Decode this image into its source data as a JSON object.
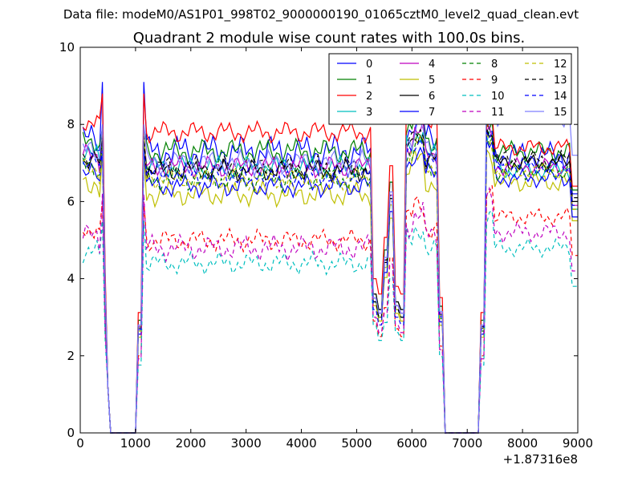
{
  "figure": {
    "suptitle": "Data file: modeM0/AS1P01_998T02_9000000190_01065cztM0_level2_quad_clean.evt"
  },
  "chart_data": {
    "type": "line",
    "title": "Quadrant 2 module wise count rates with 100.0s bins.",
    "xlabel": "",
    "ylabel": "",
    "x_offset_label": "+1.87316e8",
    "xlim": [
      0,
      9000
    ],
    "ylim": [
      0,
      10
    ],
    "xticks": [
      0,
      1000,
      2000,
      3000,
      4000,
      5000,
      6000,
      7000,
      8000,
      9000
    ],
    "yticks": [
      0,
      2,
      4,
      6,
      8,
      10
    ],
    "grid": false,
    "legend_position": "top-right",
    "series": [
      {
        "name": "0",
        "color": "#0000ff",
        "dash": "solid",
        "level": 7.3,
        "peak": 9.1,
        "drop": 3.1,
        "amp": 0.45,
        "late": 7.2
      },
      {
        "name": "1",
        "color": "#008000",
        "dash": "solid",
        "level": 7.3,
        "peak": 7.9,
        "drop": 3.2,
        "amp": 0.35,
        "late": 7.3
      },
      {
        "name": "2",
        "color": "#ff0000",
        "dash": "solid",
        "level": 7.8,
        "peak": 8.8,
        "drop": 3.6,
        "amp": 0.3,
        "late": 7.4
      },
      {
        "name": "3",
        "color": "#00bfbf",
        "dash": "solid",
        "level": 6.9,
        "peak": 7.6,
        "drop": 3.0,
        "amp": 0.3,
        "late": 6.8
      },
      {
        "name": "4",
        "color": "#bf00bf",
        "dash": "solid",
        "level": 6.9,
        "peak": 7.7,
        "drop": 3.1,
        "amp": 0.3,
        "late": 6.9
      },
      {
        "name": "5",
        "color": "#bfbf00",
        "dash": "solid",
        "level": 6.2,
        "peak": 7.3,
        "drop": 2.9,
        "amp": 0.35,
        "late": 6.5
      },
      {
        "name": "6",
        "color": "#000000",
        "dash": "solid",
        "level": 6.8,
        "peak": 7.8,
        "drop": 3.2,
        "amp": 0.3,
        "late": 7.0
      },
      {
        "name": "7",
        "color": "#0000ff",
        "dash": "solid",
        "level": 6.4,
        "peak": 7.4,
        "drop": 3.0,
        "amp": 0.3,
        "late": 6.6
      },
      {
        "name": "8",
        "color": "#008000",
        "dash": "dashed",
        "level": 6.6,
        "peak": 7.5,
        "drop": 3.0,
        "amp": 0.35,
        "late": 6.8
      },
      {
        "name": "9",
        "color": "#ff0000",
        "dash": "dashed",
        "level": 5.0,
        "peak": 6.0,
        "drop": 2.5,
        "amp": 0.3,
        "late": 5.6
      },
      {
        "name": "10",
        "color": "#00bfbf",
        "dash": "dashed",
        "level": 4.4,
        "peak": 5.5,
        "drop": 2.4,
        "amp": 0.3,
        "late": 4.8
      },
      {
        "name": "11",
        "color": "#bf00bf",
        "dash": "dashed",
        "level": 4.8,
        "peak": 6.2,
        "drop": 2.6,
        "amp": 0.35,
        "late": 5.2
      },
      {
        "name": "12",
        "color": "#bfbf00",
        "dash": "dashed",
        "level": 6.6,
        "peak": 7.9,
        "drop": 3.0,
        "amp": 0.3,
        "late": 6.8
      },
      {
        "name": "13",
        "color": "#000000",
        "dash": "dashed",
        "level": 6.9,
        "peak": 7.6,
        "drop": 3.0,
        "amp": 0.3,
        "late": 7.1
      },
      {
        "name": "14",
        "color": "#0000ff",
        "dash": "dashed",
        "level": 6.7,
        "peak": 7.3,
        "drop": 2.8,
        "amp": 0.3,
        "late": 6.9
      },
      {
        "name": "15",
        "color": "#7f7fff",
        "dash": "solid",
        "level": 7.0,
        "peak": 8.0,
        "drop": 3.1,
        "amp": 0.35,
        "late": 8.2
      }
    ]
  }
}
